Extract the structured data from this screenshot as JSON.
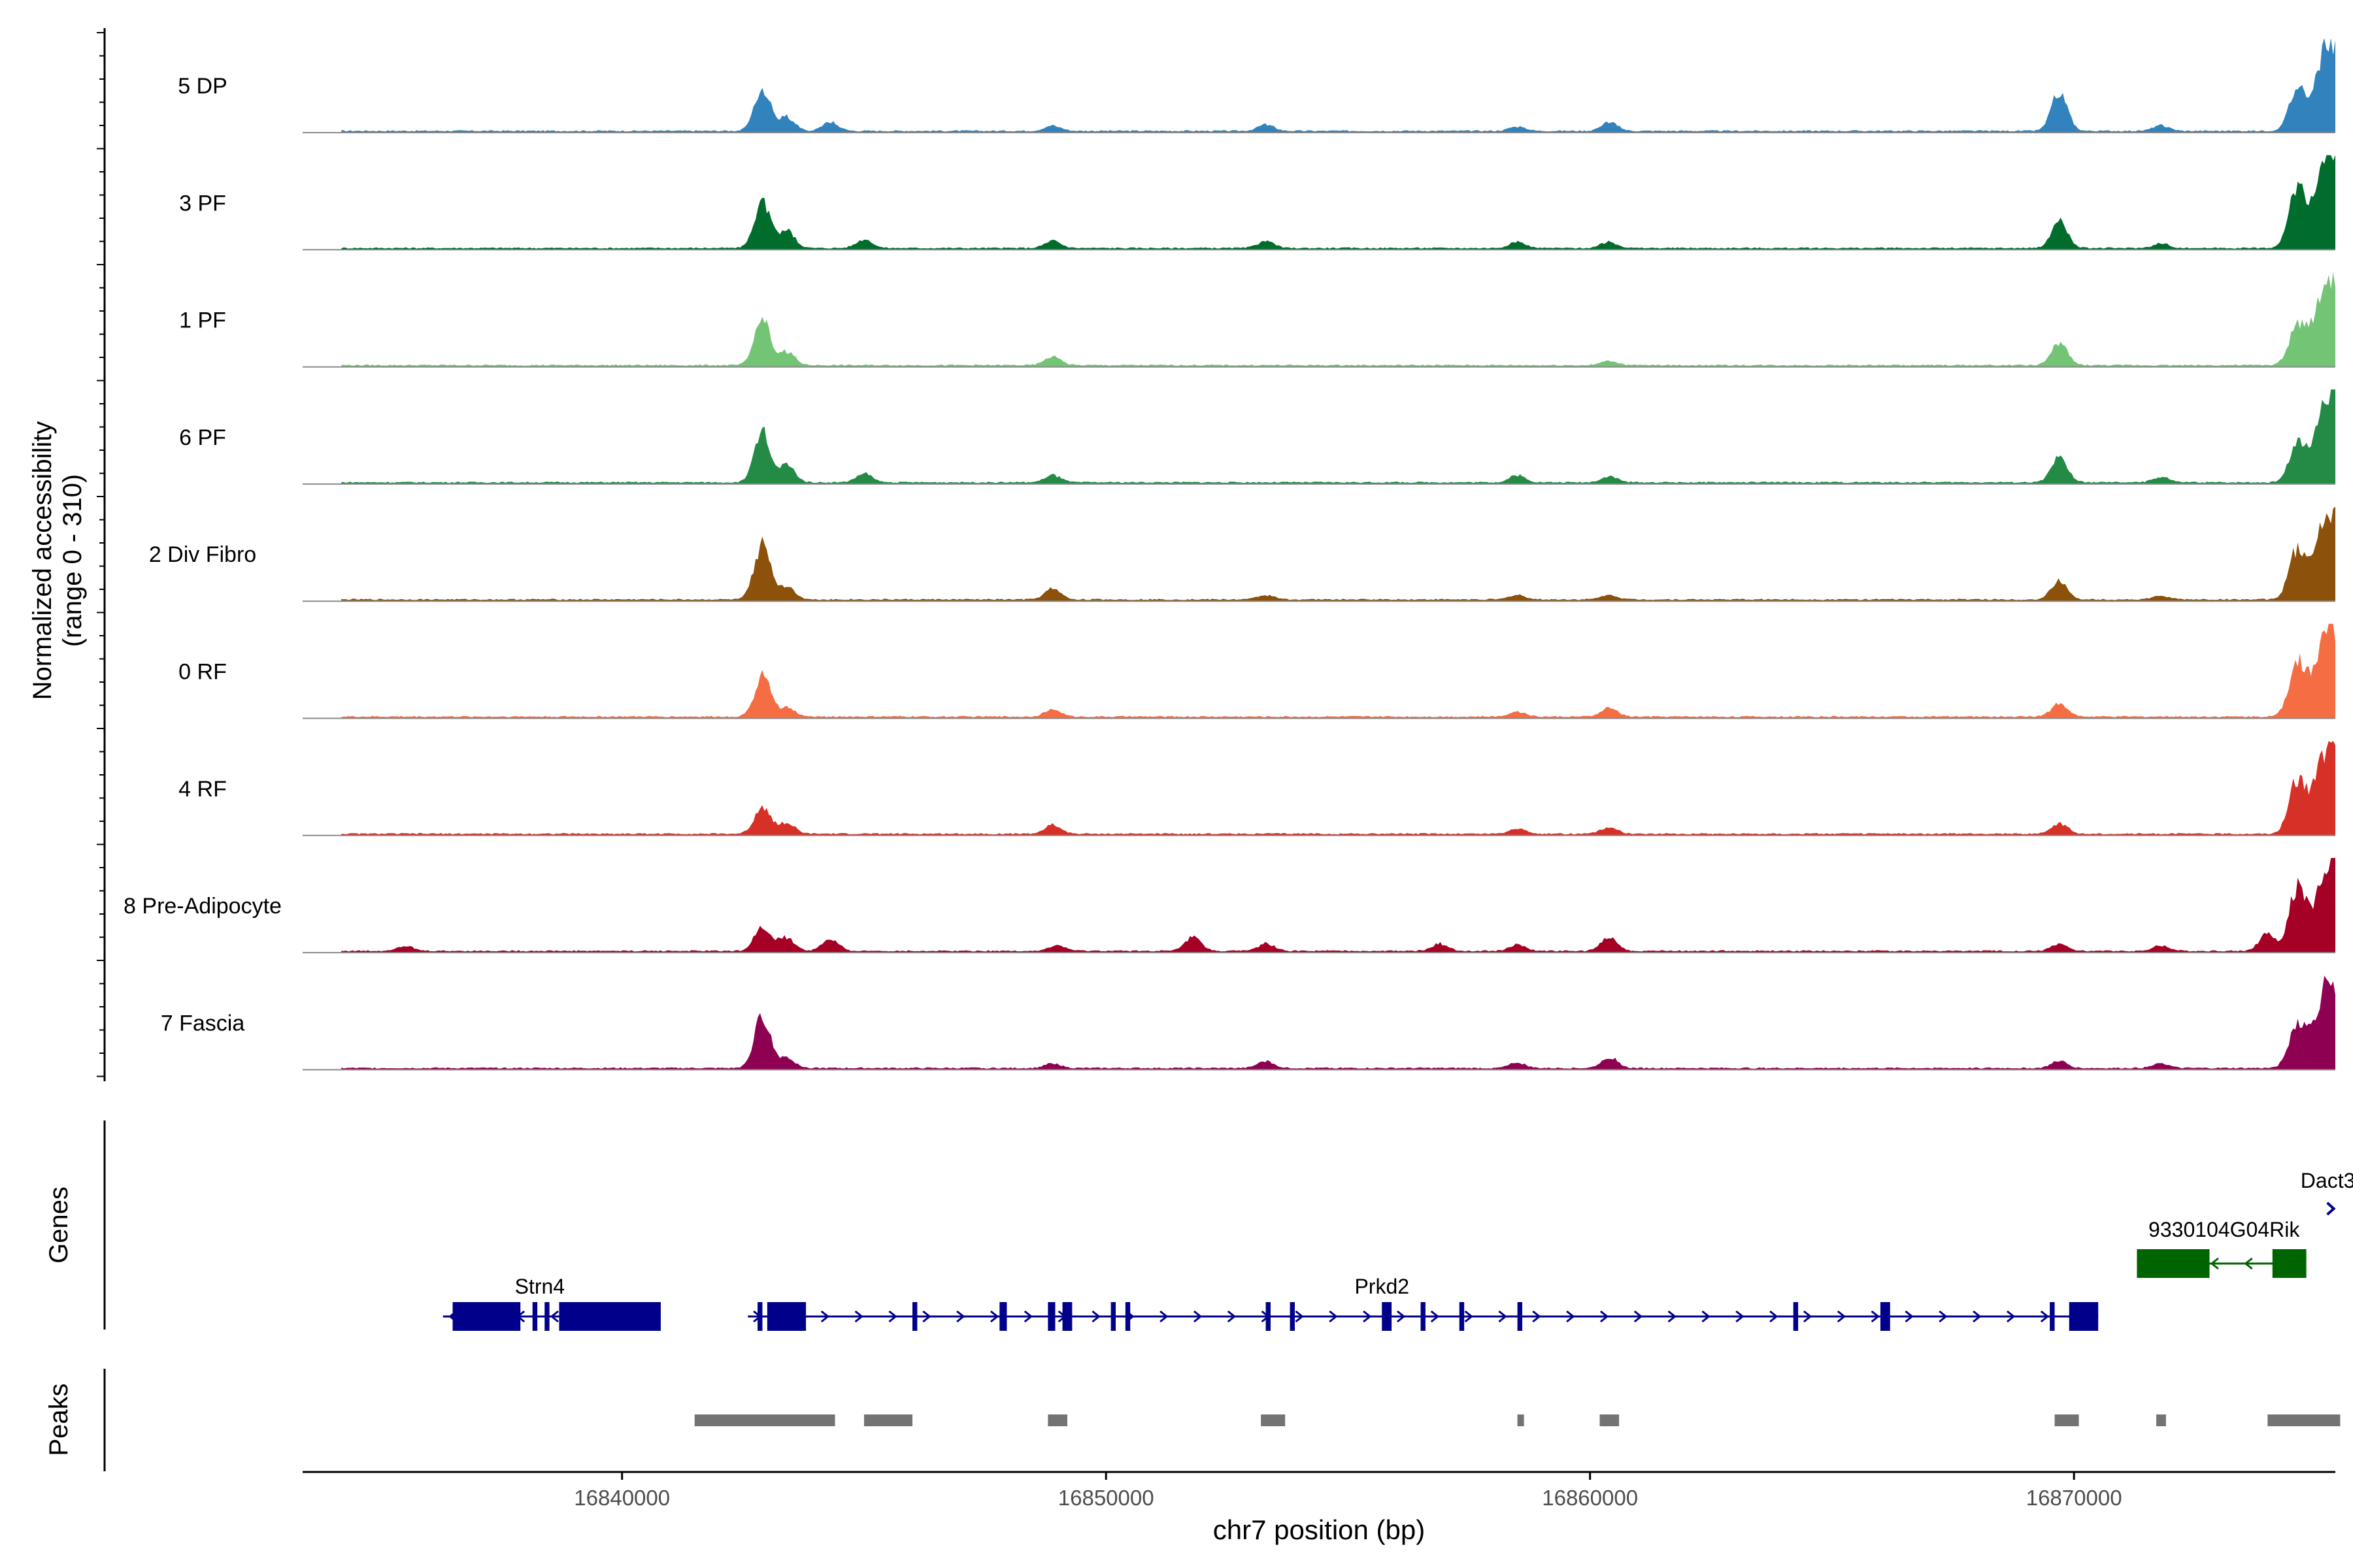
{
  "chart_data": {
    "type": "area",
    "ylabel_line1": "Normalized accessibility",
    "ylabel_line2": "(range 0 - 310)",
    "xlabel": "chr7 position (bp)",
    "ylim": [
      0,
      310
    ],
    "xlim": [
      16833400,
      16875400
    ],
    "xticks": [
      {
        "value": 16840000,
        "label": "16840000"
      },
      {
        "value": 16850000,
        "label": "16850000"
      },
      {
        "value": 16860000,
        "label": "16860000"
      },
      {
        "value": 16870000,
        "label": "16870000"
      }
    ],
    "series": [
      {
        "name": "5 DP",
        "color": "#3182BD",
        "peaks": [
          [
            16842900,
            0.47
          ],
          [
            16843400,
            0.15
          ],
          [
            16844300,
            0.1
          ],
          [
            16848900,
            0.06
          ],
          [
            16853300,
            0.07
          ],
          [
            16858500,
            0.05
          ],
          [
            16860400,
            0.1
          ],
          [
            16869700,
            0.43
          ],
          [
            16871800,
            0.06
          ],
          [
            16874600,
            0.42
          ],
          [
            16875300,
            1.0
          ]
        ]
      },
      {
        "name": "3 PF",
        "color": "#006D2C",
        "peaks": [
          [
            16842900,
            0.5
          ],
          [
            16843400,
            0.2
          ],
          [
            16845000,
            0.1
          ],
          [
            16848900,
            0.08
          ],
          [
            16853300,
            0.08
          ],
          [
            16858500,
            0.07
          ],
          [
            16860400,
            0.07
          ],
          [
            16869700,
            0.3
          ],
          [
            16871800,
            0.05
          ],
          [
            16874600,
            0.62
          ],
          [
            16875300,
            1.0
          ]
        ]
      },
      {
        "name": "1 PF",
        "color": "#74C476",
        "peaks": [
          [
            16842900,
            0.5
          ],
          [
            16843400,
            0.15
          ],
          [
            16848900,
            0.1
          ],
          [
            16860400,
            0.05
          ],
          [
            16869700,
            0.25
          ],
          [
            16874600,
            0.4
          ],
          [
            16875300,
            1.0
          ]
        ]
      },
      {
        "name": "6 PF",
        "color": "#238B45",
        "peaks": [
          [
            16842900,
            0.55
          ],
          [
            16843400,
            0.2
          ],
          [
            16845000,
            0.1
          ],
          [
            16848900,
            0.08
          ],
          [
            16858500,
            0.08
          ],
          [
            16860400,
            0.07
          ],
          [
            16869700,
            0.28
          ],
          [
            16871800,
            0.06
          ],
          [
            16874600,
            0.38
          ],
          [
            16875300,
            1.0
          ]
        ]
      },
      {
        "name": "2 Div Fibro",
        "color": "#8C510A",
        "peaks": [
          [
            16842900,
            0.62
          ],
          [
            16843400,
            0.15
          ],
          [
            16848900,
            0.12
          ],
          [
            16853300,
            0.05
          ],
          [
            16858500,
            0.05
          ],
          [
            16860400,
            0.05
          ],
          [
            16869700,
            0.2
          ],
          [
            16871800,
            0.04
          ],
          [
            16874600,
            0.5
          ],
          [
            16875300,
            1.0
          ]
        ]
      },
      {
        "name": "0 RF",
        "color": "#F46D43",
        "peaks": [
          [
            16842900,
            0.45
          ],
          [
            16843400,
            0.1
          ],
          [
            16848900,
            0.08
          ],
          [
            16858500,
            0.06
          ],
          [
            16860400,
            0.1
          ],
          [
            16869700,
            0.15
          ],
          [
            16874600,
            0.58
          ],
          [
            16875300,
            1.0
          ]
        ]
      },
      {
        "name": "4 RF",
        "color": "#D73027",
        "peaks": [
          [
            16842900,
            0.3
          ],
          [
            16843400,
            0.12
          ],
          [
            16848900,
            0.1
          ],
          [
            16858500,
            0.06
          ],
          [
            16860400,
            0.08
          ],
          [
            16869700,
            0.12
          ],
          [
            16874600,
            0.55
          ],
          [
            16875300,
            1.0
          ]
        ]
      },
      {
        "name": "8 Pre-Adipocyte",
        "color": "#A50026",
        "peaks": [
          [
            16835500,
            0.06
          ],
          [
            16842900,
            0.28
          ],
          [
            16843400,
            0.15
          ],
          [
            16844300,
            0.13
          ],
          [
            16849000,
            0.06
          ],
          [
            16851800,
            0.15
          ],
          [
            16853300,
            0.08
          ],
          [
            16856900,
            0.08
          ],
          [
            16858500,
            0.07
          ],
          [
            16860400,
            0.16
          ],
          [
            16869700,
            0.08
          ],
          [
            16871800,
            0.06
          ],
          [
            16874000,
            0.2
          ],
          [
            16874600,
            0.65
          ],
          [
            16875300,
            1.0
          ]
        ]
      },
      {
        "name": "7 Fascia",
        "color": "#8E0152",
        "peaks": [
          [
            16842900,
            0.58
          ],
          [
            16843400,
            0.12
          ],
          [
            16848900,
            0.05
          ],
          [
            16853300,
            0.08
          ],
          [
            16858500,
            0.06
          ],
          [
            16860400,
            0.12
          ],
          [
            16869700,
            0.08
          ],
          [
            16871800,
            0.05
          ],
          [
            16874600,
            0.45
          ],
          [
            16875300,
            1.0
          ]
        ]
      }
    ],
    "genes_label": "Genes",
    "genes": [
      {
        "name": "Strn4",
        "strand": "-",
        "start": 16836300,
        "end": 16840800,
        "color": "#00008B",
        "exons": [
          [
            16836500,
            16837900
          ],
          [
            16838150,
            16838250
          ],
          [
            16838400,
            16838500
          ],
          [
            16838700,
            16840800
          ]
        ]
      },
      {
        "name": "Prkd2",
        "strand": "+",
        "start": 16842600,
        "end": 16870500,
        "color": "#00008B",
        "exons": [
          [
            16842800,
            16842900
          ],
          [
            16843000,
            16843800
          ],
          [
            16846000,
            16846100
          ],
          [
            16847800,
            16847950
          ],
          [
            16848800,
            16848950
          ],
          [
            16849100,
            16849300
          ],
          [
            16850100,
            16850200
          ],
          [
            16850400,
            16850500
          ],
          [
            16853300,
            16853400
          ],
          [
            16853800,
            16853900
          ],
          [
            16855700,
            16855900
          ],
          [
            16856500,
            16856600
          ],
          [
            16857300,
            16857400
          ],
          [
            16858500,
            16858600
          ],
          [
            16864200,
            16864300
          ],
          [
            16866000,
            16866200
          ],
          [
            16869500,
            16869600
          ],
          [
            16869900,
            16870500
          ]
        ]
      },
      {
        "name": "9330104G04Rik",
        "strand": "-",
        "start": 16871300,
        "end": 16874800,
        "color": "#006400",
        "exons": [
          [
            16871300,
            16872800
          ],
          [
            16874100,
            16874800
          ]
        ]
      },
      {
        "name": "Dact3",
        "strand": "+",
        "start": 16875300,
        "end": 16875500,
        "color": "#00008B",
        "exons": []
      }
    ],
    "peaks_label": "Peaks",
    "peak_regions": [
      [
        16841500,
        16844400
      ],
      [
        16845000,
        16846000
      ],
      [
        16848800,
        16849200
      ],
      [
        16853200,
        16853700
      ],
      [
        16858500,
        16858600
      ],
      [
        16860200,
        16860600
      ],
      [
        16869600,
        16870100
      ],
      [
        16871700,
        16871900
      ],
      [
        16874000,
        16875500
      ]
    ]
  }
}
